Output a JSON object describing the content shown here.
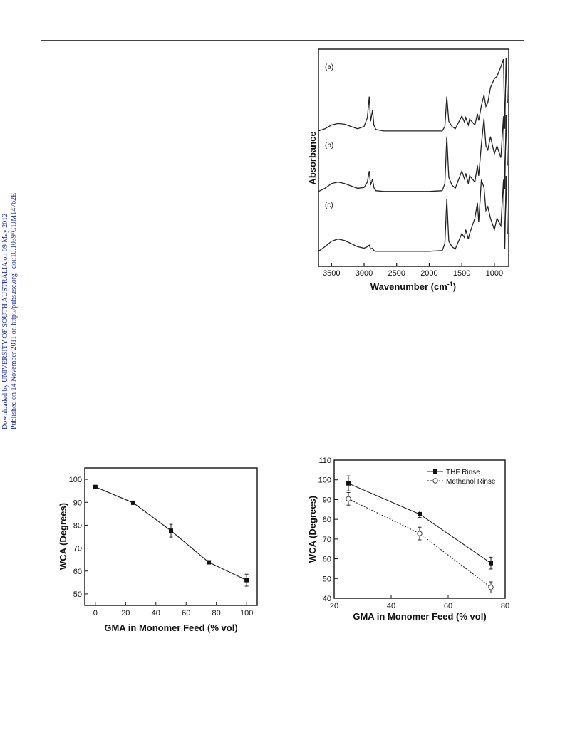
{
  "side_note": {
    "line1": "Downloaded by UNIVERSITY OF SOUTH AUSTRALIA on 09 May 2012",
    "line2": "Published on 14 November 2011 on http://pubs.rsc.org | doi:10.1039/C1JM14762E"
  },
  "chart_data": [
    {
      "type": "line",
      "xlabel": "Wavenumber (cm",
      "xlabel_sup": "-1",
      "xlabel_close": ")",
      "ylabel": "Absorbance",
      "xlim": [
        3700,
        780
      ],
      "x_reversed": true,
      "xticks": [
        3500,
        3000,
        2500,
        2000,
        1500,
        1000
      ],
      "y_ticks_shown": false,
      "series": [
        {
          "name": "(a)",
          "x": [
            3700,
            3600,
            3500,
            3400,
            3300,
            3200,
            3100,
            3000,
            2950,
            2920,
            2900,
            2870,
            2850,
            2820,
            2700,
            2500,
            2000,
            1800,
            1760,
            1730,
            1700,
            1650,
            1600,
            1500,
            1460,
            1440,
            1400,
            1380,
            1300,
            1260,
            1240,
            1200,
            1160,
            1130,
            1100,
            1060,
            1000,
            960,
            900,
            860,
            840,
            820,
            800
          ],
          "y": [
            0.02,
            0.05,
            0.1,
            0.12,
            0.11,
            0.08,
            0.05,
            0.08,
            0.2,
            0.48,
            0.15,
            0.3,
            0.1,
            0.04,
            0.02,
            0.02,
            0.02,
            0.02,
            0.08,
            0.48,
            0.15,
            0.08,
            0.05,
            0.22,
            0.14,
            0.2,
            0.1,
            0.18,
            0.1,
            0.25,
            0.16,
            0.36,
            0.5,
            0.35,
            0.4,
            0.6,
            0.72,
            0.75,
            0.88,
            0.98,
            0.05,
            1.0,
            0.4
          ]
        },
        {
          "name": "(b)",
          "x": [
            3700,
            3600,
            3500,
            3400,
            3300,
            3200,
            3100,
            3000,
            2950,
            2920,
            2900,
            2870,
            2850,
            2820,
            2700,
            2500,
            2000,
            1800,
            1760,
            1730,
            1700,
            1650,
            1600,
            1500,
            1460,
            1440,
            1400,
            1380,
            1300,
            1260,
            1240,
            1200,
            1160,
            1130,
            1100,
            1060,
            1000,
            960,
            900,
            860,
            840,
            820,
            800
          ],
          "y": [
            0.02,
            0.06,
            0.12,
            0.14,
            0.12,
            0.09,
            0.06,
            0.07,
            0.14,
            0.28,
            0.1,
            0.18,
            0.07,
            0.03,
            0.02,
            0.02,
            0.02,
            0.03,
            0.12,
            0.72,
            0.2,
            0.1,
            0.06,
            0.28,
            0.18,
            0.25,
            0.12,
            0.22,
            0.14,
            0.35,
            0.22,
            0.62,
            0.95,
            0.6,
            0.55,
            0.72,
            0.5,
            0.6,
            0.45,
            0.98,
            0.05,
            1.0,
            0.35
          ]
        },
        {
          "name": "(c)",
          "x": [
            3700,
            3600,
            3500,
            3400,
            3300,
            3200,
            3100,
            3000,
            2950,
            2920,
            2900,
            2870,
            2850,
            2820,
            2700,
            2500,
            2000,
            1800,
            1760,
            1730,
            1700,
            1650,
            1600,
            1500,
            1460,
            1440,
            1400,
            1380,
            1300,
            1260,
            1240,
            1200,
            1160,
            1130,
            1100,
            1060,
            1000,
            960,
            900,
            860,
            840,
            820,
            800
          ],
          "y": [
            0.02,
            0.08,
            0.15,
            0.18,
            0.16,
            0.12,
            0.08,
            0.06,
            0.08,
            0.1,
            0.05,
            0.06,
            0.03,
            0.02,
            0.02,
            0.02,
            0.02,
            0.03,
            0.12,
            0.7,
            0.15,
            0.08,
            0.05,
            0.25,
            0.2,
            0.3,
            0.18,
            0.25,
            0.45,
            0.65,
            0.4,
            0.95,
            0.85,
            0.55,
            0.6,
            0.45,
            0.3,
            0.45,
            0.35,
            0.95,
            0.05,
            1.0,
            0.25
          ]
        }
      ]
    },
    {
      "type": "scatter",
      "xlabel": "GMA in Monomer Feed (% vol)",
      "ylabel": "WCA (Degrees)",
      "xlim": [
        -7,
        107
      ],
      "ylim": [
        45,
        105
      ],
      "xticks": [
        0,
        20,
        40,
        60,
        80,
        100
      ],
      "yticks": [
        50,
        60,
        70,
        80,
        90,
        100
      ],
      "series": [
        {
          "x": [
            0,
            25,
            50,
            75,
            100
          ],
          "y": [
            96.7,
            89.8,
            77.6,
            63.8,
            56.0
          ],
          "err": [
            0.5,
            0.6,
            2.8,
            0.6,
            2.6
          ]
        }
      ]
    },
    {
      "type": "scatter",
      "xlabel": "GMA in Monomer Feed (% vol)",
      "ylabel": "WCA (Degrees)",
      "xlim": [
        20,
        80
      ],
      "ylim": [
        40,
        110
      ],
      "xticks": [
        20,
        40,
        60,
        80
      ],
      "yticks": [
        40,
        50,
        60,
        70,
        80,
        90,
        100,
        110
      ],
      "legend": "top-right",
      "series": [
        {
          "name": "THF Rinse",
          "marker": "filled-square",
          "line": "solid",
          "x": [
            25,
            50,
            75
          ],
          "y": [
            98.2,
            82.6,
            57.8
          ],
          "err": [
            3.8,
            1.6,
            3.0
          ]
        },
        {
          "name": "Methanol Rinse",
          "marker": "open-circle",
          "line": "dotted",
          "x": [
            25,
            50,
            75
          ],
          "y": [
            90.4,
            72.8,
            45.5
          ],
          "err": [
            3.2,
            3.2,
            2.8
          ]
        }
      ]
    }
  ]
}
